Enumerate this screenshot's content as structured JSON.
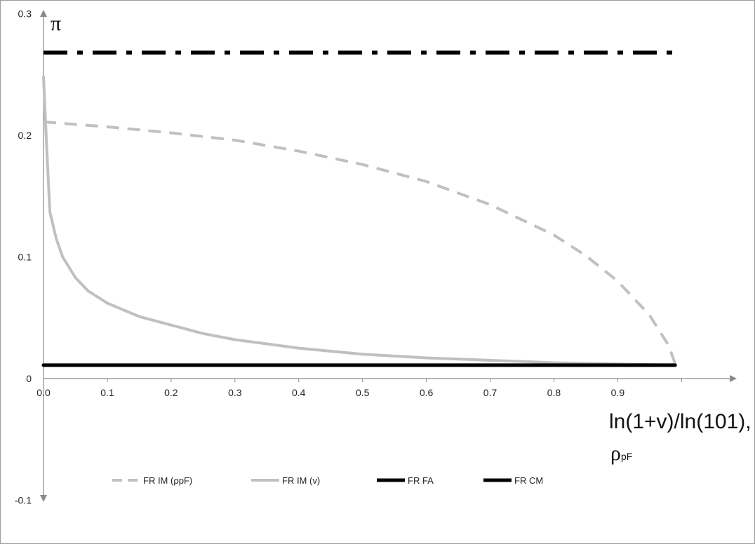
{
  "chart_data": {
    "type": "line",
    "y_axis_label": "π",
    "x_axis_label_line1": "ln(1+v)/ln(101),",
    "x_axis_label_line2_main": "ρ",
    "x_axis_label_line2_sub": "pF",
    "xlim": [
      0,
      1.07
    ],
    "ylim": [
      -0.1,
      0.3
    ],
    "x_ticks": [
      0,
      0.1,
      0.2,
      0.3,
      0.4,
      0.5,
      0.6,
      0.7,
      0.8,
      0.9
    ],
    "x_tick_labels": [
      "0.0",
      "0.1",
      "0.2",
      "0.3",
      "0.4",
      "0.5",
      "0.6",
      "0.7",
      "0.8",
      "0.9"
    ],
    "y_ticks": [
      -0.1,
      0,
      0.1,
      0.2,
      0.3
    ],
    "y_tick_labels": [
      "-0.1",
      "0",
      "0.1",
      "0.2",
      "0.3"
    ],
    "grid": false,
    "legend_position": "bottom",
    "series": [
      {
        "name": "FR IM (ρpF)",
        "color": "#c0c0c0",
        "style": "dashed",
        "x": [
          0,
          0.1,
          0.2,
          0.3,
          0.4,
          0.5,
          0.6,
          0.7,
          0.8,
          0.85,
          0.9,
          0.95,
          0.98,
          0.99
        ],
        "y": [
          0.211,
          0.207,
          0.202,
          0.196,
          0.187,
          0.176,
          0.162,
          0.143,
          0.118,
          0.101,
          0.08,
          0.052,
          0.027,
          0.012
        ]
      },
      {
        "name": "FR IM (v)",
        "color": "#c0c0c0",
        "style": "solid",
        "x": [
          0,
          0.005,
          0.01,
          0.02,
          0.03,
          0.05,
          0.07,
          0.1,
          0.15,
          0.2,
          0.25,
          0.3,
          0.4,
          0.5,
          0.6,
          0.7,
          0.8,
          0.9,
          0.99
        ],
        "y": [
          0.248,
          0.19,
          0.137,
          0.115,
          0.1,
          0.083,
          0.072,
          0.062,
          0.051,
          0.044,
          0.037,
          0.032,
          0.025,
          0.02,
          0.017,
          0.015,
          0.013,
          0.012,
          0.011
        ]
      },
      {
        "name": "FR FA",
        "color": "#000000",
        "style": "dashdot",
        "x": [
          0,
          0.99
        ],
        "y": [
          0.268,
          0.268
        ]
      },
      {
        "name": "FR CM",
        "color": "#000000",
        "style": "solid",
        "x": [
          0,
          0.99
        ],
        "y": [
          0.011,
          0.011
        ]
      }
    ]
  }
}
